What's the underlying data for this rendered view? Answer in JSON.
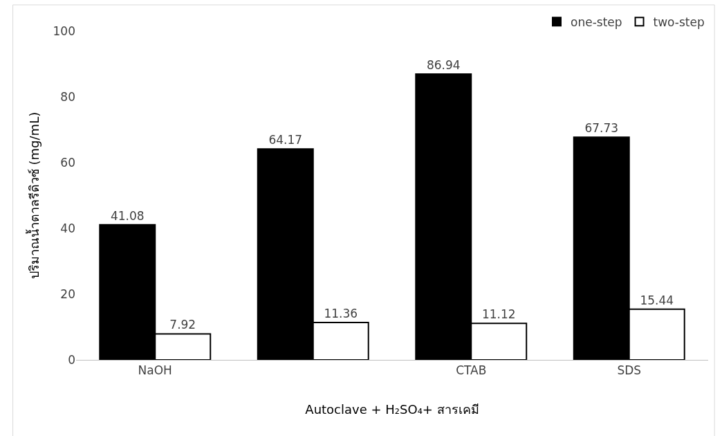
{
  "chart_data": {
    "type": "bar",
    "xlabel": "Autoclave + H₂SO₄+ สารเคมี",
    "ylabel": "ปริมาณน้ำตาลรีดิวซ์ (mg/mL)",
    "categories": [
      "NaOH",
      null,
      "CTAB",
      "SDS"
    ],
    "series": [
      {
        "name": "one-step",
        "color": "#000000",
        "values": [
          41.08,
          64.17,
          86.94,
          67.73
        ]
      },
      {
        "name": "two-step",
        "color": "#ffffff",
        "values": [
          7.92,
          11.36,
          11.12,
          15.44
        ]
      }
    ],
    "ylim": [
      0,
      100
    ],
    "yticks": [
      0,
      20,
      40,
      60,
      80,
      100
    ],
    "grid": false,
    "legend": "top right",
    "data_labels": true
  }
}
